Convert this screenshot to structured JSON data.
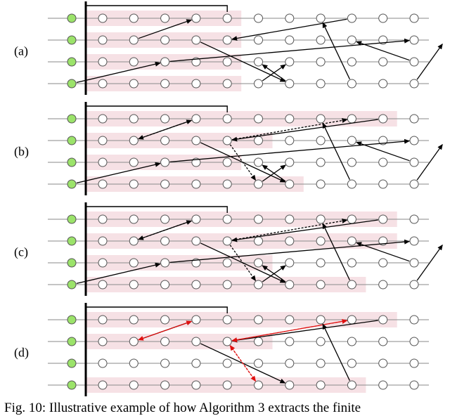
{
  "figure": {
    "caption": "Fig. 10: Illustrative example of how Algorithm 3 extracts the finite",
    "panel_count": 4,
    "rows_per_panel": 4,
    "nodes_per_row": 11,
    "colors": {
      "initial_node": "#9be36a",
      "shading": "#f6e1e5",
      "line": "#8a8a8a",
      "arrow": "#000000",
      "highlight": "#e01010"
    }
  },
  "panels": [
    {
      "label": "(a)",
      "shading": [
        [
          0,
          0,
          4
        ],
        [
          1,
          0,
          4
        ],
        [
          2,
          0,
          4
        ],
        [
          3,
          0,
          4
        ]
      ],
      "bracket": 4,
      "arrows": [
        {
          "from": [
            1,
            1
          ],
          "to": [
            0,
            3
          ],
          "style": "solid"
        },
        {
          "from": [
            0,
            8
          ],
          "to": [
            1,
            4
          ],
          "style": "solid"
        },
        {
          "from": [
            3,
            -1
          ],
          "to": [
            2,
            2
          ],
          "style": "solid"
        },
        {
          "from": [
            2,
            2
          ],
          "to": [
            1,
            10
          ],
          "style": "solid"
        },
        {
          "from": [
            1,
            3
          ],
          "to": [
            3,
            6
          ],
          "style": "solid"
        },
        {
          "from": [
            3,
            5
          ],
          "to": [
            2,
            6
          ],
          "style": "solid"
        },
        {
          "from": [
            3,
            6
          ],
          "to": [
            2,
            5
          ],
          "style": "solid"
        },
        {
          "from": [
            3,
            8
          ],
          "to": [
            0,
            7
          ],
          "style": "solid"
        },
        {
          "from": [
            2,
            10
          ],
          "to": [
            1,
            8
          ],
          "style": "solid"
        },
        {
          "from": [
            3,
            10
          ],
          "to": [
            1,
            11
          ],
          "style": "solid"
        }
      ]
    },
    {
      "label": "(b)",
      "shading": [
        [
          0,
          0,
          9
        ],
        [
          1,
          0,
          5
        ],
        [
          2,
          0,
          4
        ],
        [
          3,
          0,
          6
        ]
      ],
      "bracket": 4,
      "arrows": [
        {
          "from": [
            1,
            1
          ],
          "to": [
            0,
            3
          ],
          "style": "solid"
        },
        {
          "from": [
            0,
            3
          ],
          "to": [
            1,
            1
          ],
          "style": "dashed"
        },
        {
          "from": [
            0,
            9
          ],
          "to": [
            1,
            4
          ],
          "style": "solid"
        },
        {
          "from": [
            1,
            4
          ],
          "to": [
            0,
            8
          ],
          "style": "dashed"
        },
        {
          "from": [
            3,
            -1
          ],
          "to": [
            2,
            2
          ],
          "style": "solid"
        },
        {
          "from": [
            2,
            2
          ],
          "to": [
            1,
            10
          ],
          "style": "solid"
        },
        {
          "from": [
            1,
            3
          ],
          "to": [
            3,
            6
          ],
          "style": "solid"
        },
        {
          "from": [
            1,
            4
          ],
          "to": [
            3,
            5
          ],
          "style": "dashed"
        },
        {
          "from": [
            3,
            5
          ],
          "to": [
            2,
            6
          ],
          "style": "solid"
        },
        {
          "from": [
            3,
            6
          ],
          "to": [
            2,
            5
          ],
          "style": "solid"
        },
        {
          "from": [
            3,
            8
          ],
          "to": [
            0,
            7
          ],
          "style": "solid"
        },
        {
          "from": [
            2,
            10
          ],
          "to": [
            1,
            8
          ],
          "style": "solid"
        },
        {
          "from": [
            3,
            10
          ],
          "to": [
            1,
            11
          ],
          "style": "solid"
        }
      ]
    },
    {
      "label": "(c)",
      "shading": [
        [
          0,
          0,
          9
        ],
        [
          1,
          0,
          9
        ],
        [
          2,
          0,
          5
        ],
        [
          3,
          0,
          8
        ]
      ],
      "bracket": 4,
      "arrows": [
        {
          "from": [
            1,
            1
          ],
          "to": [
            0,
            3
          ],
          "style": "solid"
        },
        {
          "from": [
            0,
            3
          ],
          "to": [
            1,
            1
          ],
          "style": "dashed"
        },
        {
          "from": [
            0,
            9
          ],
          "to": [
            1,
            4
          ],
          "style": "solid"
        },
        {
          "from": [
            1,
            4
          ],
          "to": [
            0,
            8
          ],
          "style": "dashed"
        },
        {
          "from": [
            3,
            -1
          ],
          "to": [
            2,
            2
          ],
          "style": "solid"
        },
        {
          "from": [
            2,
            2
          ],
          "to": [
            1,
            10
          ],
          "style": "solid"
        },
        {
          "from": [
            1,
            3
          ],
          "to": [
            3,
            6
          ],
          "style": "solid"
        },
        {
          "from": [
            1,
            4
          ],
          "to": [
            3,
            5
          ],
          "style": "dashed"
        },
        {
          "from": [
            3,
            5
          ],
          "to": [
            2,
            6
          ],
          "style": "solid"
        },
        {
          "from": [
            3,
            6
          ],
          "to": [
            2,
            5
          ],
          "style": "solid"
        },
        {
          "from": [
            3,
            8
          ],
          "to": [
            0,
            7
          ],
          "style": "solid"
        },
        {
          "from": [
            2,
            10
          ],
          "to": [
            1,
            8
          ],
          "style": "solid"
        },
        {
          "from": [
            3,
            10
          ],
          "to": [
            1,
            11
          ],
          "style": "solid"
        }
      ]
    },
    {
      "label": "(d)",
      "shading": [
        [
          0,
          0,
          9
        ],
        [
          1,
          0,
          5
        ],
        [
          2,
          -1,
          -1
        ],
        [
          3,
          0,
          8
        ]
      ],
      "bracket": 4,
      "arrows": [
        {
          "from": [
            1,
            1
          ],
          "to": [
            0,
            3
          ],
          "style": "solid"
        },
        {
          "from": [
            0,
            3
          ],
          "to": [
            1,
            1
          ],
          "style": "highlight"
        },
        {
          "from": [
            1,
            1
          ],
          "to": [
            0,
            3
          ],
          "style": "highlight"
        },
        {
          "from": [
            0,
            9
          ],
          "to": [
            1,
            4
          ],
          "style": "solid"
        },
        {
          "from": [
            1,
            4
          ],
          "to": [
            0,
            8
          ],
          "style": "highlight"
        },
        {
          "from": [
            0,
            8
          ],
          "to": [
            1,
            4
          ],
          "style": "highlight"
        },
        {
          "from": [
            3,
            8
          ],
          "to": [
            0,
            7
          ],
          "style": "solid"
        },
        {
          "from": [
            1,
            3
          ],
          "to": [
            3,
            6
          ],
          "style": "solid"
        },
        {
          "from": [
            1,
            4
          ],
          "to": [
            3,
            5
          ],
          "style": "highlight"
        },
        {
          "from": [
            3,
            5
          ],
          "to": [
            1,
            4
          ],
          "style": "highlight"
        }
      ]
    }
  ]
}
